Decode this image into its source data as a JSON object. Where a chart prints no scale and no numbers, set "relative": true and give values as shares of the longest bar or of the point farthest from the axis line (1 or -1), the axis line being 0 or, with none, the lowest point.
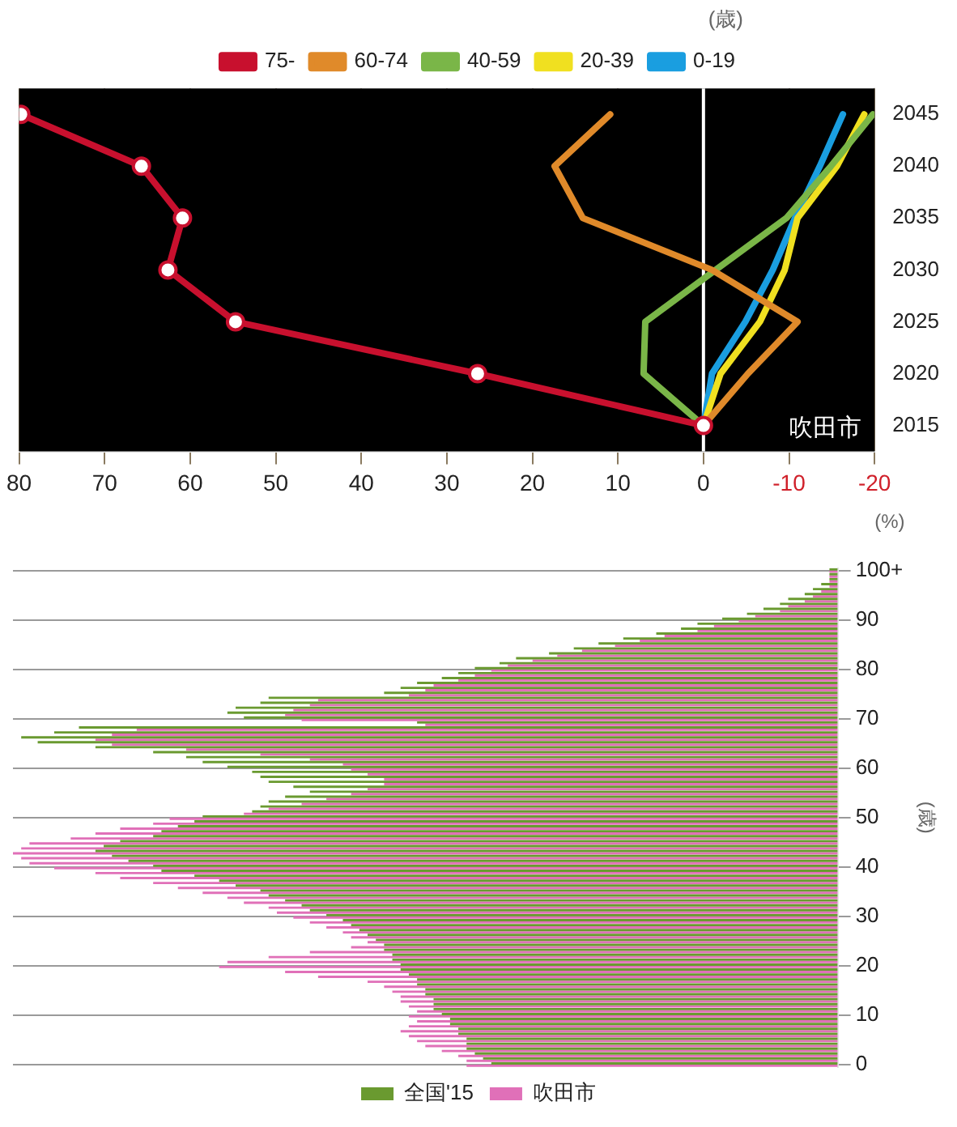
{
  "chart_data": [
    {
      "type": "line",
      "orientation": "horizontal",
      "xlabel": "(%)",
      "legend": "top",
      "legend_title": "(歳)",
      "grid": "x",
      "line_style": "solid",
      "categories": [
        "2045",
        "2040",
        "2035",
        "2030",
        "2025",
        "2020",
        "2015"
      ],
      "xlim": [
        80,
        -20
      ],
      "xticks": [
        80,
        70,
        60,
        50,
        40,
        30,
        20,
        10,
        0,
        -10,
        -20
      ],
      "annotations": [
        "吹田市"
      ],
      "ref_lines": [
        {
          "axis": "x",
          "value": 0,
          "color": "#ffffff"
        }
      ],
      "series": [
        {
          "name": "75-",
          "color": "#c8102e",
          "marker": "circle",
          "values": [
            79.8,
            65.7,
            60.9,
            62.6,
            54.7,
            26.4,
            0
          ]
        },
        {
          "name": "60-74",
          "color": "#e08a2a",
          "marker": "none",
          "values": [
            10.9,
            17.4,
            14.1,
            -1,
            -11,
            -5.2,
            0
          ]
        },
        {
          "name": "40-59",
          "color": "#7ab648",
          "marker": "none",
          "values": [
            -19.8,
            -14.9,
            -9.7,
            -1.4,
            6.8,
            7,
            0
          ]
        },
        {
          "name": "20-39",
          "color": "#f0e020",
          "marker": "none",
          "values": [
            -18.8,
            -15.6,
            -11,
            -9.5,
            -6.6,
            -2,
            0
          ]
        },
        {
          "name": "0-19",
          "color": "#1a9ee0",
          "marker": "none",
          "values": [
            -16.3,
            -13.6,
            -10.7,
            -8.1,
            -4.9,
            -1,
            0
          ]
        }
      ]
    },
    {
      "type": "bar",
      "orientation": "horizontal",
      "relative": true,
      "ylabel": "(歳)",
      "grid": "y",
      "legend": "bottom",
      "categories": [
        "100+",
        null,
        null,
        null,
        null,
        null,
        null,
        null,
        null,
        null,
        "90",
        null,
        null,
        null,
        null,
        null,
        null,
        null,
        null,
        null,
        "80",
        null,
        null,
        null,
        null,
        null,
        null,
        null,
        null,
        null,
        "70",
        null,
        null,
        null,
        null,
        null,
        null,
        null,
        null,
        null,
        "60",
        null,
        null,
        null,
        null,
        null,
        null,
        null,
        null,
        null,
        "50",
        null,
        null,
        null,
        null,
        null,
        null,
        null,
        null,
        null,
        "40",
        null,
        null,
        null,
        null,
        null,
        null,
        null,
        null,
        null,
        "30",
        null,
        null,
        null,
        null,
        null,
        null,
        null,
        null,
        null,
        "20",
        null,
        null,
        null,
        null,
        null,
        null,
        null,
        null,
        null,
        "10",
        null,
        null,
        null,
        null,
        null,
        null,
        null,
        null,
        null,
        "0"
      ],
      "series": [
        {
          "name": "全国'15",
          "color": "#6a9a30",
          "values": [
            0.01,
            0.01,
            0.01,
            0.02,
            0.03,
            0.04,
            0.06,
            0.07,
            0.09,
            0.11,
            0.14,
            0.17,
            0.19,
            0.22,
            0.26,
            0.29,
            0.32,
            0.35,
            0.39,
            0.41,
            0.44,
            0.46,
            0.48,
            0.51,
            0.53,
            0.55,
            0.69,
            0.7,
            0.73,
            0.74,
            0.72,
            0.51,
            0.92,
            0.95,
            0.99,
            0.97,
            0.9,
            0.83,
            0.79,
            0.77,
            0.74,
            0.71,
            0.7,
            0.69,
            0.66,
            0.64,
            0.67,
            0.69,
            0.7,
            0.71,
            0.77,
            0.78,
            0.8,
            0.82,
            0.83,
            0.87,
            0.89,
            0.9,
            0.88,
            0.86,
            0.83,
            0.82,
            0.78,
            0.75,
            0.73,
            0.7,
            0.69,
            0.67,
            0.65,
            0.64,
            0.62,
            0.6,
            0.59,
            0.58,
            0.57,
            0.56,
            0.55,
            0.55,
            0.54,
            0.54,
            0.53,
            0.53,
            0.52,
            0.51,
            0.51,
            0.5,
            0.5,
            0.49,
            0.49,
            0.49,
            0.48,
            0.47,
            0.47,
            0.46,
            0.46,
            0.45,
            0.45,
            0.45,
            0.44,
            0.43,
            0.42
          ]
        },
        {
          "name": "吹田市",
          "color": "#e070b8",
          "values": [
            0.01,
            0.01,
            0.01,
            0.01,
            0.02,
            0.03,
            0.04,
            0.06,
            0.07,
            0.1,
            0.12,
            0.15,
            0.17,
            0.21,
            0.24,
            0.27,
            0.31,
            0.34,
            0.37,
            0.4,
            0.42,
            0.44,
            0.46,
            0.49,
            0.5,
            0.52,
            0.63,
            0.64,
            0.66,
            0.67,
            0.65,
            0.5,
            0.85,
            0.88,
            0.9,
            0.88,
            0.79,
            0.7,
            0.64,
            0.6,
            0.59,
            0.57,
            0.55,
            0.55,
            0.57,
            0.59,
            0.62,
            0.65,
            0.69,
            0.72,
            0.81,
            0.83,
            0.87,
            0.9,
            0.93,
            0.98,
            0.99,
            1,
            0.99,
            0.98,
            0.95,
            0.9,
            0.87,
            0.83,
            0.8,
            0.77,
            0.74,
            0.72,
            0.69,
            0.68,
            0.66,
            0.64,
            0.62,
            0.6,
            0.59,
            0.57,
            0.59,
            0.64,
            0.69,
            0.74,
            0.75,
            0.67,
            0.63,
            0.57,
            0.55,
            0.54,
            0.53,
            0.53,
            0.52,
            0.51,
            0.52,
            0.51,
            0.52,
            0.53,
            0.52,
            0.51,
            0.5,
            0.48,
            0.46,
            0.45,
            0.45
          ]
        }
      ]
    }
  ]
}
